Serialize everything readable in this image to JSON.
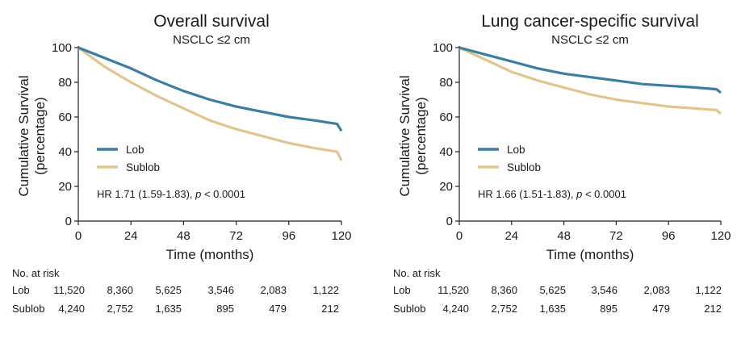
{
  "chart_data": [
    {
      "type": "line",
      "title": "Overall survival",
      "subtitle": "NSCLC ≤2 cm",
      "xlabel": "Time (months)",
      "ylabel": "Cumulative Survival",
      "ylabel2": "(percentage)",
      "xlim": [
        0,
        120
      ],
      "ylim": [
        0,
        100
      ],
      "xticks": [
        0,
        24,
        48,
        72,
        96,
        120
      ],
      "yticks": [
        0,
        20,
        40,
        60,
        80,
        100
      ],
      "grid": false,
      "legend_position": "middle-left",
      "series": [
        {
          "name": "Lob",
          "color": "#3b7ea1",
          "x": [
            0,
            12,
            24,
            36,
            48,
            60,
            72,
            84,
            96,
            108,
            118,
            120
          ],
          "y": [
            100,
            94,
            88,
            81,
            75,
            70,
            66,
            63,
            60,
            58,
            56,
            52
          ]
        },
        {
          "name": "Sublob",
          "color": "#e0c68e",
          "x": [
            0,
            12,
            24,
            36,
            48,
            60,
            72,
            84,
            96,
            108,
            118,
            120
          ],
          "y": [
            100,
            89,
            80,
            72,
            65,
            58,
            53,
            49,
            45,
            42,
            40,
            35
          ]
        }
      ],
      "annotation": {
        "hr": "HR 1.71 (1.59-1.83),",
        "p_symbol": "p",
        "p_value": "< 0.0001"
      },
      "risk_table": {
        "header": "No. at risk",
        "rows": [
          {
            "label": "Lob",
            "values": [
              "11,520",
              "8,360",
              "5,625",
              "3,546",
              "2,083",
              "1,122"
            ]
          },
          {
            "label": "Sublob",
            "values": [
              "4,240",
              "2,752",
              "1,635",
              "895",
              "479",
              "212"
            ]
          }
        ]
      }
    },
    {
      "type": "line",
      "title": "Lung cancer-specific survival",
      "subtitle": "NSCLC ≤2 cm",
      "xlabel": "Time (months)",
      "ylabel": "Cumulative Survival",
      "ylabel2": "(percentage)",
      "xlim": [
        0,
        120
      ],
      "ylim": [
        0,
        100
      ],
      "xticks": [
        0,
        24,
        48,
        72,
        96,
        120
      ],
      "yticks": [
        0,
        20,
        40,
        60,
        80,
        100
      ],
      "grid": false,
      "legend_position": "middle-left",
      "series": [
        {
          "name": "Lob",
          "color": "#3b7ea1",
          "x": [
            0,
            12,
            24,
            36,
            48,
            60,
            72,
            84,
            96,
            108,
            118,
            120
          ],
          "y": [
            100,
            96,
            92,
            88,
            85,
            83,
            81,
            79,
            78,
            77,
            76,
            74
          ]
        },
        {
          "name": "Sublob",
          "color": "#e0c68e",
          "x": [
            0,
            12,
            24,
            36,
            48,
            60,
            72,
            84,
            96,
            108,
            118,
            120
          ],
          "y": [
            100,
            93,
            86,
            81,
            77,
            73,
            70,
            68,
            66,
            65,
            64,
            62
          ]
        }
      ],
      "annotation": {
        "hr": "HR 1.66 (1.51-1.83),",
        "p_symbol": "p",
        "p_value": "< 0.0001"
      },
      "risk_table": {
        "header": "No. at risk",
        "rows": [
          {
            "label": "Lob",
            "values": [
              "11,520",
              "8,360",
              "5,625",
              "3,546",
              "2,083",
              "1,122"
            ]
          },
          {
            "label": "Sublob",
            "values": [
              "4,240",
              "2,752",
              "1,635",
              "895",
              "479",
              "212"
            ]
          }
        ]
      }
    }
  ]
}
